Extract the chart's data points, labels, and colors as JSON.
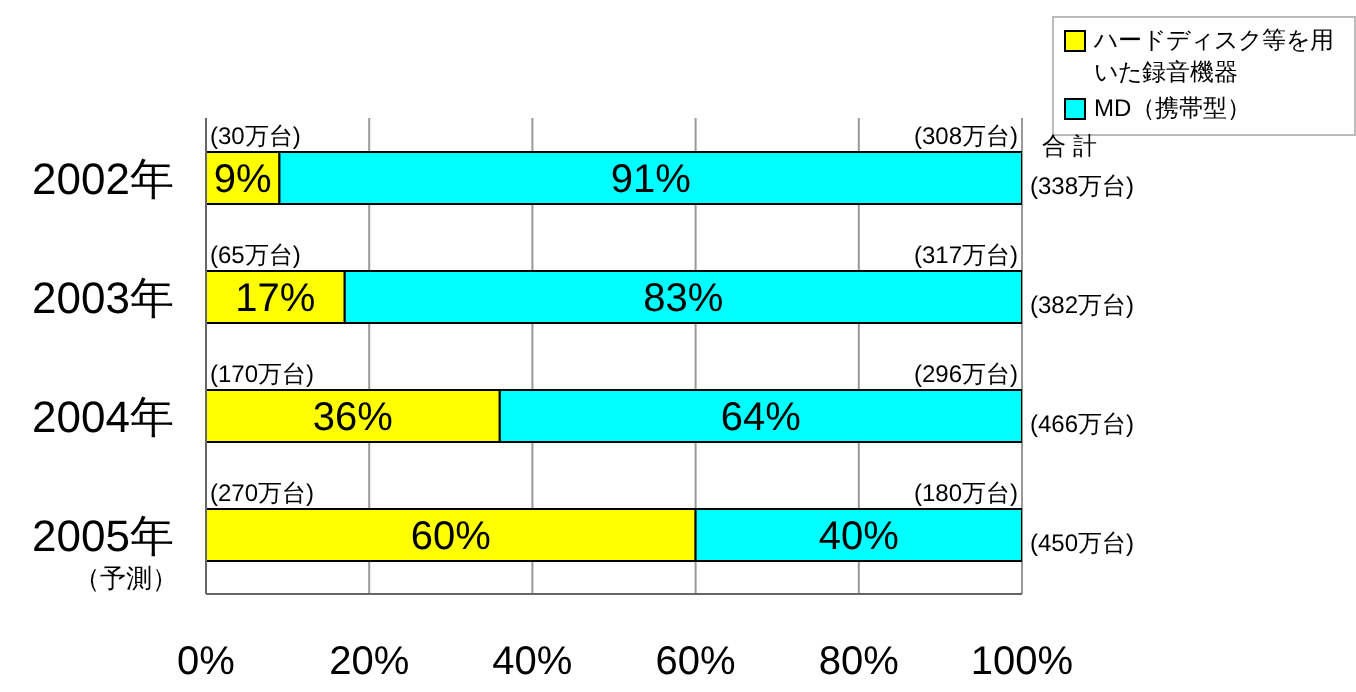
{
  "chart_data": {
    "type": "bar",
    "orientation": "horizontal",
    "stacked": true,
    "categories": [
      "2002年",
      "2003年",
      "2004年",
      "2005年"
    ],
    "series": [
      {
        "name": "ハードディスク等を用いた録音機器",
        "color": "#ffff00",
        "values": [
          9,
          17,
          36,
          60
        ],
        "value_labels": [
          "9%",
          "17%",
          "36%",
          "60%"
        ]
      },
      {
        "name": "MD（携帯型）",
        "color": "#00ffff",
        "values": [
          91,
          83,
          64,
          40
        ],
        "value_labels": [
          "91%",
          "83%",
          "64%",
          "40%"
        ]
      }
    ],
    "xlim": [
      0,
      100
    ],
    "xticks": [
      {
        "value": 0,
        "label": "0%"
      },
      {
        "value": 20,
        "label": "20%"
      },
      {
        "value": 40,
        "label": "40%"
      },
      {
        "value": 60,
        "label": "60%"
      },
      {
        "value": 80,
        "label": "80%"
      },
      {
        "value": 100,
        "label": "100%"
      }
    ],
    "grid": "x",
    "legend": "top right",
    "annotations": [
      "合 計",
      "（予測）",
      "(338万台)",
      "(382万台)",
      "(466万台)",
      "(450万台)",
      "(30万台)",
      "(308万台)",
      "(65万台)",
      "(317万台)",
      "(170万台)",
      "(296万台)",
      "(270万台)",
      "(180万台)"
    ]
  }
}
